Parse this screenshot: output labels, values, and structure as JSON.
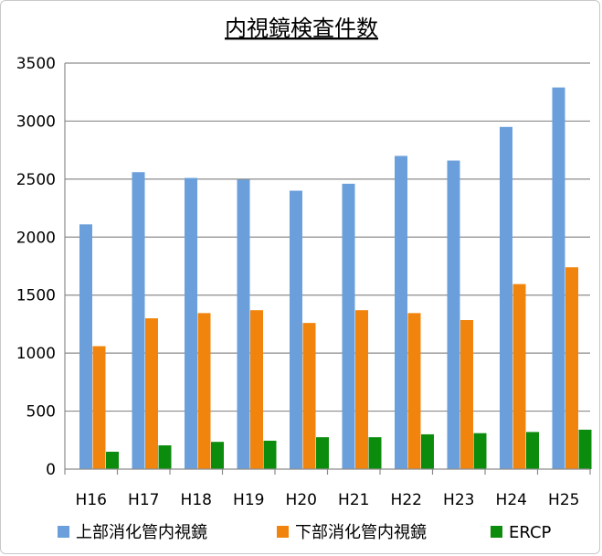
{
  "chart_data": {
    "type": "bar",
    "title": "内視鏡検査件数",
    "xlabel": "",
    "ylabel": "",
    "categories": [
      "H16",
      "H17",
      "H18",
      "H19",
      "H20",
      "H21",
      "H22",
      "H23",
      "H24",
      "H25"
    ],
    "series": [
      {
        "name": "上部消化管内視鏡",
        "color": "#6a9fdc",
        "values": [
          2110,
          2560,
          2510,
          2495,
          2400,
          2460,
          2700,
          2660,
          2950,
          3290
        ]
      },
      {
        "name": "下部消化管内視鏡",
        "color": "#f0840c",
        "values": [
          1060,
          1300,
          1345,
          1370,
          1260,
          1370,
          1345,
          1285,
          1595,
          1740
        ]
      },
      {
        "name": "ERCP",
        "color": "#0c8c0c",
        "values": [
          150,
          205,
          235,
          245,
          275,
          275,
          300,
          310,
          320,
          340
        ]
      }
    ],
    "ylim": [
      0,
      3500
    ],
    "yticks": [
      0,
      500,
      1000,
      1500,
      2000,
      2500,
      3000,
      3500
    ],
    "grid": true,
    "legend": "bottom"
  }
}
